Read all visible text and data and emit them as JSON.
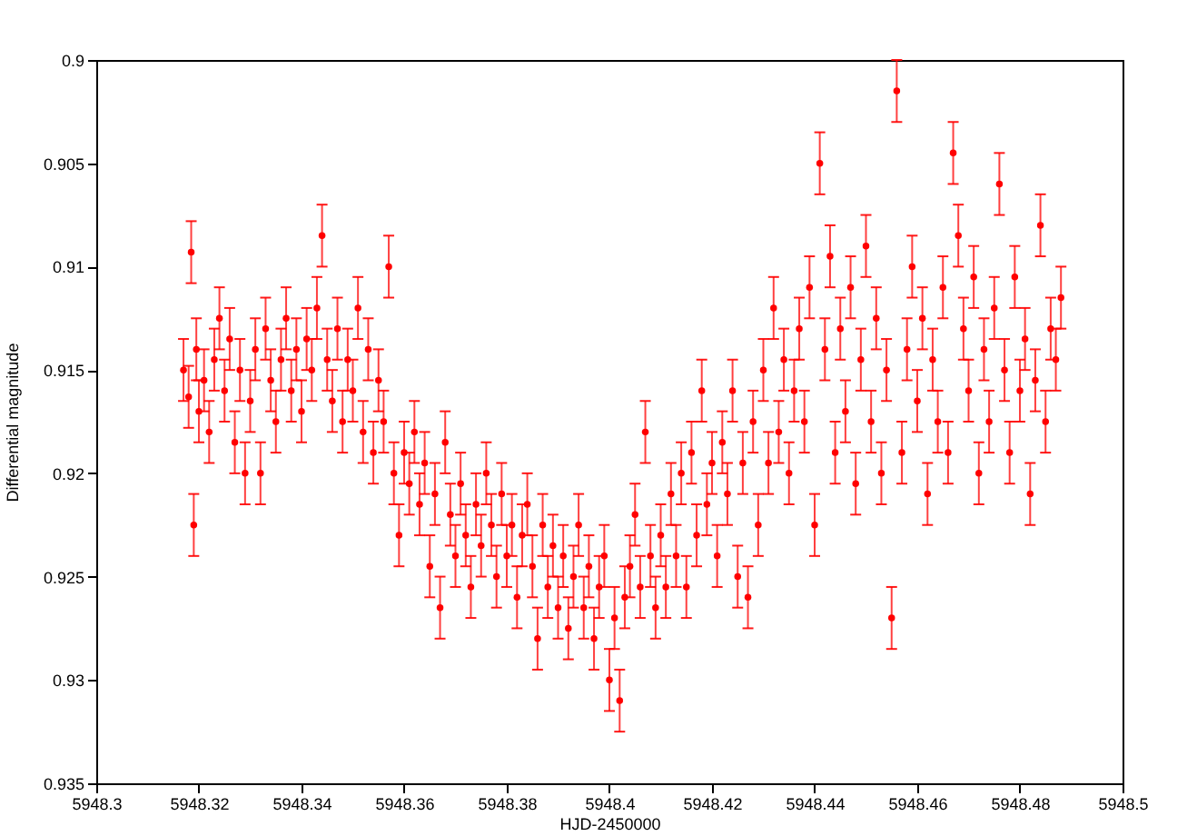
{
  "chart_data": {
    "type": "scatter",
    "xlabel": "HJD-2450000",
    "ylabel": "Differential magnitude",
    "xlim": [
      5948.3,
      5948.5
    ],
    "xticks": [
      5948.3,
      5948.32,
      5948.34,
      5948.36,
      5948.38,
      5948.4,
      5948.42,
      5948.44,
      5948.46,
      5948.48,
      5948.5
    ],
    "ylim": [
      0.935,
      0.9
    ],
    "yticks": [
      0.9,
      0.905,
      0.91,
      0.915,
      0.92,
      0.925,
      0.93,
      0.935
    ],
    "grid": false,
    "marker": "circle",
    "series": [
      {
        "color": "#ff0000",
        "x": [
          5948.317,
          5948.318,
          5948.3185,
          5948.319,
          5948.3195,
          5948.32,
          5948.321,
          5948.322,
          5948.323,
          5948.324,
          5948.325,
          5948.326,
          5948.327,
          5948.328,
          5948.329,
          5948.33,
          5948.331,
          5948.332,
          5948.333,
          5948.334,
          5948.335,
          5948.336,
          5948.337,
          5948.338,
          5948.339,
          5948.34,
          5948.341,
          5948.342,
          5948.343,
          5948.344,
          5948.345,
          5948.346,
          5948.347,
          5948.348,
          5948.349,
          5948.35,
          5948.351,
          5948.352,
          5948.353,
          5948.354,
          5948.355,
          5948.356,
          5948.357,
          5948.358,
          5948.359,
          5948.36,
          5948.361,
          5948.362,
          5948.363,
          5948.364,
          5948.365,
          5948.366,
          5948.367,
          5948.368,
          5948.369,
          5948.37,
          5948.371,
          5948.372,
          5948.373,
          5948.374,
          5948.375,
          5948.376,
          5948.377,
          5948.378,
          5948.379,
          5948.38,
          5948.381,
          5948.382,
          5948.383,
          5948.384,
          5948.385,
          5948.386,
          5948.387,
          5948.388,
          5948.389,
          5948.39,
          5948.391,
          5948.392,
          5948.393,
          5948.394,
          5948.395,
          5948.396,
          5948.397,
          5948.398,
          5948.399,
          5948.4,
          5948.401,
          5948.402,
          5948.403,
          5948.404,
          5948.405,
          5948.406,
          5948.407,
          5948.408,
          5948.409,
          5948.41,
          5948.411,
          5948.412,
          5948.413,
          5948.414,
          5948.415,
          5948.416,
          5948.417,
          5948.418,
          5948.419,
          5948.42,
          5948.421,
          5948.422,
          5948.423,
          5948.424,
          5948.425,
          5948.426,
          5948.427,
          5948.428,
          5948.429,
          5948.43,
          5948.431,
          5948.432,
          5948.433,
          5948.434,
          5948.435,
          5948.436,
          5948.437,
          5948.438,
          5948.439,
          5948.44,
          5948.441,
          5948.442,
          5948.443,
          5948.444,
          5948.445,
          5948.446,
          5948.447,
          5948.448,
          5948.449,
          5948.45,
          5948.451,
          5948.452,
          5948.453,
          5948.454,
          5948.455,
          5948.456,
          5948.457,
          5948.458,
          5948.459,
          5948.46,
          5948.461,
          5948.462,
          5948.463,
          5948.464,
          5948.465,
          5948.466,
          5948.467,
          5948.468,
          5948.469,
          5948.47,
          5948.471,
          5948.472,
          5948.473,
          5948.474,
          5948.475,
          5948.476,
          5948.477,
          5948.478,
          5948.479,
          5948.48,
          5948.481,
          5948.482,
          5948.483,
          5948.484,
          5948.485,
          5948.486,
          5948.487,
          5948.488
        ],
        "values": [
          0.915,
          0.9163,
          0.9093,
          0.9225,
          0.914,
          0.917,
          0.9155,
          0.918,
          0.9145,
          0.9125,
          0.916,
          0.9135,
          0.9185,
          0.915,
          0.92,
          0.9165,
          0.914,
          0.92,
          0.913,
          0.9155,
          0.9175,
          0.9145,
          0.9125,
          0.916,
          0.914,
          0.917,
          0.9135,
          0.915,
          0.912,
          0.9085,
          0.9145,
          0.9165,
          0.913,
          0.9175,
          0.9145,
          0.916,
          0.912,
          0.918,
          0.914,
          0.919,
          0.9155,
          0.9175,
          0.91,
          0.92,
          0.923,
          0.919,
          0.9205,
          0.918,
          0.9215,
          0.9195,
          0.9245,
          0.921,
          0.9265,
          0.9185,
          0.922,
          0.924,
          0.9205,
          0.923,
          0.9255,
          0.9215,
          0.9235,
          0.92,
          0.9225,
          0.925,
          0.921,
          0.924,
          0.9225,
          0.926,
          0.923,
          0.9215,
          0.9245,
          0.928,
          0.9225,
          0.9255,
          0.9235,
          0.9265,
          0.924,
          0.9275,
          0.925,
          0.9225,
          0.9265,
          0.9245,
          0.928,
          0.9255,
          0.924,
          0.93,
          0.927,
          0.931,
          0.926,
          0.9245,
          0.922,
          0.9255,
          0.918,
          0.924,
          0.9265,
          0.923,
          0.9255,
          0.921,
          0.924,
          0.92,
          0.9255,
          0.919,
          0.923,
          0.916,
          0.9215,
          0.9195,
          0.924,
          0.9185,
          0.921,
          0.916,
          0.925,
          0.9195,
          0.926,
          0.9175,
          0.9225,
          0.915,
          0.9195,
          0.912,
          0.918,
          0.9145,
          0.92,
          0.916,
          0.913,
          0.9175,
          0.911,
          0.9225,
          0.905,
          0.914,
          0.9095,
          0.919,
          0.913,
          0.917,
          0.911,
          0.9205,
          0.9145,
          0.909,
          0.9175,
          0.9125,
          0.92,
          0.915,
          0.927,
          0.9015,
          0.919,
          0.914,
          0.91,
          0.9165,
          0.9125,
          0.921,
          0.9145,
          0.9175,
          0.911,
          0.919,
          0.9045,
          0.9085,
          0.913,
          0.916,
          0.9105,
          0.92,
          0.914,
          0.9175,
          0.912,
          0.906,
          0.915,
          0.919,
          0.9105,
          0.916,
          0.9135,
          0.921,
          0.9155,
          0.908,
          0.9175,
          0.913,
          0.9145,
          0.9115
        ],
        "errors": [
          0.0015,
          0.0015,
          0.0015,
          0.0015,
          0.0015,
          0.0015,
          0.0015,
          0.0015,
          0.0015,
          0.0015,
          0.0015,
          0.0015,
          0.0015,
          0.0015,
          0.0015,
          0.0015,
          0.0015,
          0.0015,
          0.0015,
          0.0015,
          0.0015,
          0.0015,
          0.0015,
          0.0015,
          0.0015,
          0.0015,
          0.0015,
          0.0015,
          0.0015,
          0.0015,
          0.0015,
          0.0015,
          0.0015,
          0.0015,
          0.0015,
          0.0015,
          0.0015,
          0.0015,
          0.0015,
          0.0015,
          0.0015,
          0.0015,
          0.0015,
          0.0015,
          0.0015,
          0.0015,
          0.0015,
          0.0015,
          0.0015,
          0.0015,
          0.0015,
          0.0015,
          0.0015,
          0.0015,
          0.0015,
          0.0015,
          0.0015,
          0.0015,
          0.0015,
          0.0015,
          0.0015,
          0.0015,
          0.0015,
          0.0015,
          0.0015,
          0.0015,
          0.0015,
          0.0015,
          0.0015,
          0.0015,
          0.0015,
          0.0015,
          0.0015,
          0.0015,
          0.0015,
          0.0015,
          0.0015,
          0.0015,
          0.0015,
          0.0015,
          0.0015,
          0.0015,
          0.0015,
          0.0015,
          0.0015,
          0.0015,
          0.0015,
          0.0015,
          0.0015,
          0.0015,
          0.0015,
          0.0015,
          0.0015,
          0.0015,
          0.0015,
          0.0015,
          0.0015,
          0.0015,
          0.0015,
          0.0015,
          0.0015,
          0.0015,
          0.0015,
          0.0015,
          0.0015,
          0.0015,
          0.0015,
          0.0015,
          0.0015,
          0.0015,
          0.0015,
          0.0015,
          0.0015,
          0.0015,
          0.0015,
          0.0015,
          0.0015,
          0.0015,
          0.0015,
          0.0015,
          0.0015,
          0.0015,
          0.0015,
          0.0015,
          0.0015,
          0.0015,
          0.0015,
          0.0015,
          0.0015,
          0.0015,
          0.0015,
          0.0015,
          0.0015,
          0.0015,
          0.0015,
          0.0015,
          0.0015,
          0.0015,
          0.0015,
          0.0015,
          0.0015,
          0.0015,
          0.0015,
          0.0015,
          0.0015,
          0.0015,
          0.0015,
          0.0015,
          0.0015,
          0.0015,
          0.0015,
          0.0015,
          0.0015,
          0.0015,
          0.0015,
          0.0015,
          0.0015,
          0.0015,
          0.0015,
          0.0015,
          0.0015,
          0.0015,
          0.0015,
          0.0015,
          0.0015,
          0.0015,
          0.0015,
          0.0015,
          0.0015,
          0.0015,
          0.0015,
          0.0015,
          0.0015,
          0.0015
        ]
      }
    ]
  }
}
